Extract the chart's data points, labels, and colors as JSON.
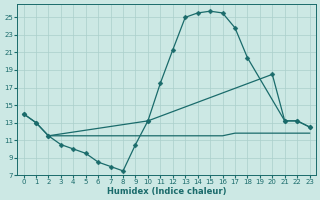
{
  "xlabel": "Humidex (Indice chaleur)",
  "bg_color": "#cce8e4",
  "grid_color": "#aacfcb",
  "line_color": "#1a6b6b",
  "xlim": [
    -0.5,
    23.5
  ],
  "ylim": [
    7,
    26.5
  ],
  "yticks": [
    7,
    9,
    11,
    13,
    15,
    17,
    19,
    21,
    23,
    25
  ],
  "xticks": [
    0,
    1,
    2,
    3,
    4,
    5,
    6,
    7,
    8,
    9,
    10,
    11,
    12,
    13,
    14,
    15,
    16,
    17,
    18,
    19,
    20,
    21,
    22,
    23
  ],
  "curve1_x": [
    0,
    1,
    2,
    3,
    4,
    5,
    6,
    7,
    8,
    9,
    10,
    11,
    12,
    13,
    14,
    15,
    16,
    17,
    18,
    21,
    22,
    23
  ],
  "curve1_y": [
    14.0,
    13.0,
    11.5,
    10.5,
    10.0,
    9.5,
    8.5,
    8.0,
    7.5,
    10.5,
    13.2,
    17.5,
    21.3,
    25.0,
    25.5,
    25.7,
    25.5,
    23.8,
    20.4,
    13.2,
    13.2,
    12.5
  ],
  "curve2_x": [
    0,
    1,
    2,
    10,
    20,
    21,
    22,
    23
  ],
  "curve2_y": [
    14.0,
    13.0,
    11.5,
    13.2,
    18.5,
    13.2,
    13.2,
    12.5
  ],
  "curve3_x": [
    2,
    3,
    4,
    5,
    6,
    7,
    8,
    9,
    10,
    11,
    12,
    13,
    14,
    15,
    16,
    17,
    18,
    19,
    20,
    21,
    22,
    23
  ],
  "curve3_y": [
    11.5,
    11.5,
    11.5,
    11.5,
    11.5,
    11.5,
    11.5,
    11.5,
    11.5,
    11.5,
    11.5,
    11.5,
    11.5,
    11.5,
    11.5,
    11.8,
    11.8,
    11.8,
    11.8,
    11.8,
    11.8,
    11.8
  ],
  "marker_size": 2.5,
  "lw": 0.9
}
